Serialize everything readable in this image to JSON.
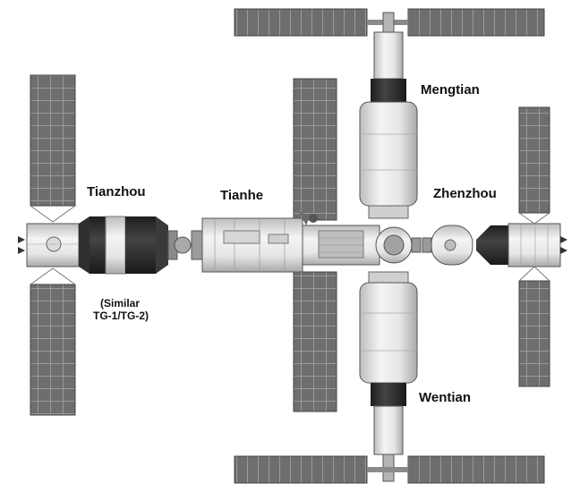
{
  "labels": {
    "mengtian": "Mengtian",
    "tianzhou": "Tianzhou",
    "tianhe": "Tianhe",
    "zhenzhou": "Zhenzhou",
    "similar_line1": "(Similar",
    "similar_line2": "TG-1/TG-2)",
    "wentian": "Wentian"
  },
  "colors": {
    "panel": "#6e6e6e",
    "panel_grid": "#9a9a9a",
    "module_body": "#ececec",
    "module_shade": "#bdbdbd",
    "dark_band": "#2a2a2a",
    "outline": "#555555"
  },
  "icons": [
    "solar-array",
    "docking-port",
    "sensor-dish"
  ]
}
